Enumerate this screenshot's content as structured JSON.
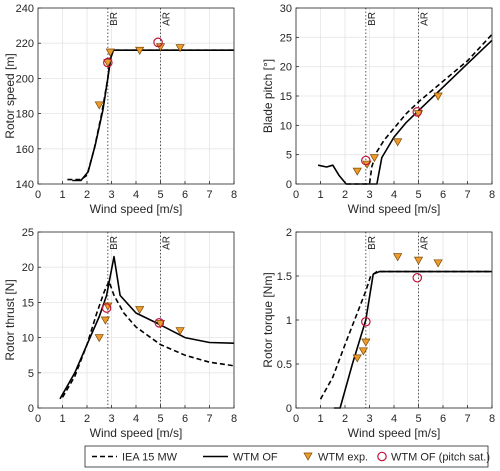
{
  "colors": {
    "line": "#000000",
    "exp_fill": "#ED9B2D",
    "exp_edge": "#7A4A05",
    "pitch_sat": "#C0143C",
    "vline": "#555555",
    "grid": "#e5e5e5"
  },
  "legend": {
    "items": [
      {
        "label": "IEA 15 MW",
        "style": "dashed-line"
      },
      {
        "label": "WTM OF",
        "style": "solid-line"
      },
      {
        "label": "WTM exp.",
        "style": "triangle-marker"
      },
      {
        "label": "WTM OF (pitch sat.)",
        "style": "circle-marker"
      }
    ]
  },
  "chart_data": [
    {
      "type": "line",
      "xlabel": "Wind speed [m/s]",
      "ylabel": "Rotor speed [m]",
      "xlim": [
        0,
        8
      ],
      "ylim": [
        140,
        240
      ],
      "xticks": [
        0,
        1,
        2,
        3,
        4,
        5,
        6,
        7,
        8
      ],
      "yticks": [
        140,
        160,
        180,
        200,
        220,
        240
      ],
      "grid": true,
      "vlines": [
        {
          "x": 2.85,
          "label": "BR"
        },
        {
          "x": 5.0,
          "label": "AR"
        }
      ],
      "series": [
        {
          "name": "IEA 15 MW",
          "style": "dashed",
          "points": [
            [
              1.2,
              142.5
            ],
            [
              1.75,
              142.5
            ],
            [
              2.0,
              145
            ],
            [
              2.3,
              160
            ],
            [
              2.6,
              180
            ],
            [
              2.85,
              200
            ],
            [
              2.95,
              213
            ],
            [
              3.05,
              216
            ],
            [
              3.2,
              216
            ],
            [
              4,
              216
            ],
            [
              6,
              216
            ],
            [
              8,
              216
            ]
          ]
        },
        {
          "name": "WTM OF",
          "style": "solid",
          "points": [
            [
              1.4,
              142
            ],
            [
              1.75,
              142
            ],
            [
              2.05,
              147
            ],
            [
              2.35,
              163
            ],
            [
              2.65,
              182
            ],
            [
              2.85,
              200
            ],
            [
              2.98,
              212
            ],
            [
              3.08,
              216
            ],
            [
              3.2,
              216
            ],
            [
              4,
              216
            ],
            [
              6,
              216
            ],
            [
              8,
              216
            ]
          ]
        },
        {
          "name": "WTM exp.",
          "style": "triangle",
          "points": [
            [
              2.5,
              185
            ],
            [
              2.85,
              209
            ],
            [
              2.95,
              215
            ],
            [
              4.15,
              216
            ],
            [
              5.0,
              218
            ],
            [
              5.8,
              217.5
            ]
          ]
        },
        {
          "name": "WTM OF (pitch sat.)",
          "style": "circle",
          "points": [
            [
              2.85,
              209
            ],
            [
              4.9,
              220.5
            ]
          ]
        }
      ]
    },
    {
      "type": "line",
      "xlabel": "Wind speed [m/s]",
      "ylabel": "Blade pitch [°]",
      "xlim": [
        0,
        8
      ],
      "ylim": [
        0,
        30
      ],
      "xticks": [
        0,
        1,
        2,
        3,
        4,
        5,
        6,
        7,
        8
      ],
      "yticks": [
        0,
        5,
        10,
        15,
        20,
        25,
        30
      ],
      "grid": true,
      "vlines": [
        {
          "x": 2.85,
          "label": "BR"
        },
        {
          "x": 5.0,
          "label": "AR"
        }
      ],
      "series": [
        {
          "name": "IEA 15 MW",
          "style": "dashed",
          "points": [
            [
              2.05,
              0
            ],
            [
              3.0,
              0
            ],
            [
              3.1,
              3
            ],
            [
              3.3,
              5.5
            ],
            [
              3.6,
              7.5
            ],
            [
              4,
              9.5
            ],
            [
              4.5,
              12
            ],
            [
              5,
              14
            ],
            [
              6,
              17.5
            ],
            [
              7,
              21
            ],
            [
              8,
              25.5
            ]
          ]
        },
        {
          "name": "WTM OF",
          "style": "solid",
          "points": [
            [
              0.9,
              3.2
            ],
            [
              1.25,
              2.9
            ],
            [
              1.5,
              3.2
            ],
            [
              1.75,
              1.5
            ],
            [
              2.05,
              0
            ],
            [
              3.3,
              0
            ],
            [
              3.5,
              4.5
            ],
            [
              4,
              8
            ],
            [
              4.5,
              10.5
            ],
            [
              5,
              12.5
            ],
            [
              6,
              16.5
            ],
            [
              7,
              20.5
            ],
            [
              8,
              24.5
            ]
          ]
        },
        {
          "name": "WTM exp.",
          "style": "triangle",
          "points": [
            [
              2.5,
              2.2
            ],
            [
              2.9,
              3.4
            ],
            [
              3.2,
              4.5
            ],
            [
              4.15,
              7.2
            ],
            [
              5.0,
              12.0
            ],
            [
              5.8,
              15.0
            ]
          ]
        },
        {
          "name": "WTM OF (pitch sat.)",
          "style": "circle",
          "points": [
            [
              2.85,
              4.0
            ],
            [
              4.95,
              12.3
            ]
          ]
        }
      ]
    },
    {
      "type": "line",
      "xlabel": "Wind speed [m/s]",
      "ylabel": "Rotor thrust [N]",
      "xlim": [
        0,
        8
      ],
      "ylim": [
        0,
        25
      ],
      "xticks": [
        0,
        1,
        2,
        3,
        4,
        5,
        6,
        7,
        8
      ],
      "yticks": [
        0,
        5,
        10,
        15,
        20,
        25
      ],
      "grid": true,
      "vlines": [
        {
          "x": 2.85,
          "label": "BR"
        },
        {
          "x": 5.0,
          "label": "AR"
        }
      ],
      "series": [
        {
          "name": "IEA 15 MW",
          "style": "dashed",
          "points": [
            [
              1.0,
              1.5
            ],
            [
              1.5,
              4.5
            ],
            [
              2.0,
              9
            ],
            [
              2.4,
              13.5
            ],
            [
              2.7,
              16.5
            ],
            [
              2.9,
              18
            ],
            [
              3.1,
              16
            ],
            [
              3.5,
              13.5
            ],
            [
              4,
              11.5
            ],
            [
              5,
              9
            ],
            [
              6,
              7.5
            ],
            [
              7,
              6.5
            ],
            [
              8,
              6
            ]
          ]
        },
        {
          "name": "WTM OF",
          "style": "solid",
          "points": [
            [
              0.9,
              1.3
            ],
            [
              1.5,
              5
            ],
            [
              2.0,
              9
            ],
            [
              2.5,
              13
            ],
            [
              2.8,
              16
            ],
            [
              3.1,
              21.5
            ],
            [
              3.35,
              16
            ],
            [
              4,
              13.5
            ],
            [
              5,
              11.8
            ],
            [
              6,
              10
            ],
            [
              7,
              9.3
            ],
            [
              8,
              9.2
            ]
          ]
        },
        {
          "name": "WTM exp.",
          "style": "triangle",
          "points": [
            [
              2.5,
              10
            ],
            [
              2.75,
              12.5
            ],
            [
              2.85,
              14.5
            ],
            [
              4.15,
              14.0
            ],
            [
              5.0,
              12.0
            ],
            [
              5.8,
              11.0
            ]
          ]
        },
        {
          "name": "WTM OF (pitch sat.)",
          "style": "circle",
          "points": [
            [
              2.8,
              14.2
            ],
            [
              4.95,
              12.1
            ]
          ]
        }
      ]
    },
    {
      "type": "line",
      "xlabel": "Wind speed [m/s]",
      "ylabel": "Rotor torque [Nm]",
      "xlim": [
        0,
        8
      ],
      "ylim": [
        0,
        2
      ],
      "xticks": [
        0,
        1,
        2,
        3,
        4,
        5,
        6,
        7,
        8
      ],
      "yticks": [
        0,
        0.5,
        1,
        1.5,
        2
      ],
      "grid": true,
      "vlines": [
        {
          "x": 2.85,
          "label": "BR"
        },
        {
          "x": 5.0,
          "label": "AR"
        }
      ],
      "series": [
        {
          "name": "IEA 15 MW",
          "style": "dashed",
          "points": [
            [
              1.0,
              0.1
            ],
            [
              1.5,
              0.35
            ],
            [
              2,
              0.72
            ],
            [
              2.5,
              1.08
            ],
            [
              2.85,
              1.33
            ],
            [
              3.05,
              1.5
            ],
            [
              3.3,
              1.55
            ],
            [
              4,
              1.55
            ],
            [
              6,
              1.55
            ],
            [
              8,
              1.55
            ]
          ]
        },
        {
          "name": "WTM OF",
          "style": "solid",
          "points": [
            [
              1.55,
              0
            ],
            [
              1.8,
              0
            ],
            [
              2.3,
              0.5
            ],
            [
              2.85,
              1.0
            ],
            [
              3.15,
              1.52
            ],
            [
              3.4,
              1.55
            ],
            [
              4,
              1.55
            ],
            [
              6,
              1.55
            ],
            [
              8,
              1.55
            ]
          ]
        },
        {
          "name": "WTM exp.",
          "style": "triangle",
          "points": [
            [
              2.5,
              0.57
            ],
            [
              2.75,
              0.65
            ],
            [
              2.85,
              0.75
            ],
            [
              4.15,
              1.72
            ],
            [
              5.0,
              1.68
            ],
            [
              5.8,
              1.65
            ]
          ]
        },
        {
          "name": "WTM OF (pitch sat.)",
          "style": "circle",
          "points": [
            [
              2.85,
              0.98
            ],
            [
              4.95,
              1.48
            ]
          ]
        }
      ]
    }
  ]
}
